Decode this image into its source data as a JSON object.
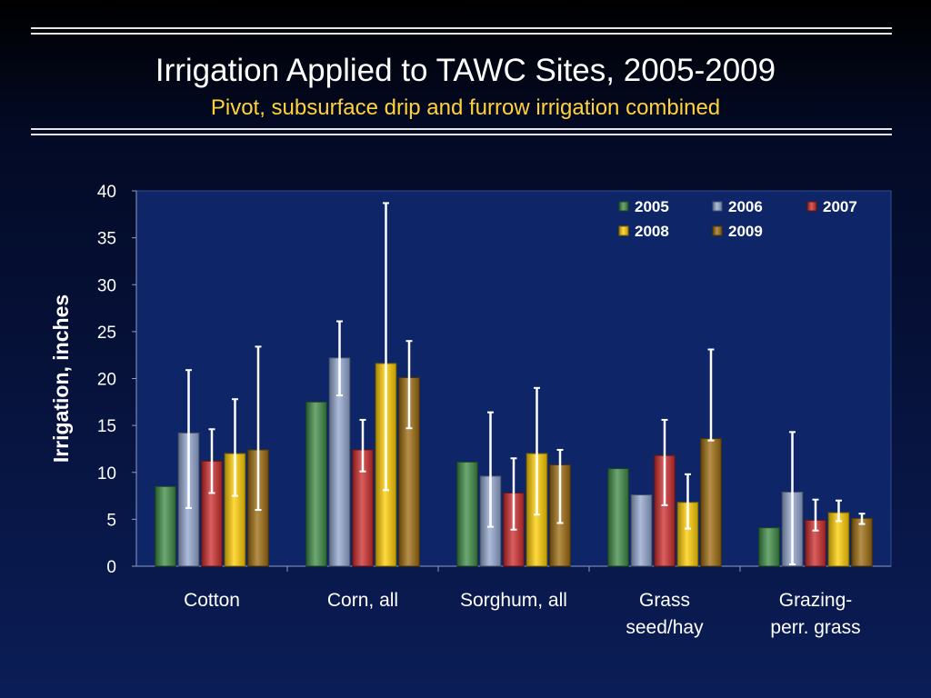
{
  "title": "Irrigation Applied to TAWC Sites, 2005-2009",
  "subtitle": "Pivot, subsurface drip and furrow irrigation combined",
  "colors": {
    "background": "#0b1d57",
    "title": "#ffffff",
    "subtitle": "#ffd23c",
    "error_bar": "#ffffff"
  },
  "chart_data": {
    "type": "bar",
    "ylabel": "Irrigation, inches",
    "xlabel": "",
    "ylim": [
      0,
      40
    ],
    "yticks": [
      0,
      5,
      10,
      15,
      20,
      25,
      30,
      35,
      40
    ],
    "grid": false,
    "legend_position": "top-right",
    "categories": [
      [
        "Cotton"
      ],
      [
        "Corn, all"
      ],
      [
        "Sorghum, all"
      ],
      [
        "Grass",
        "seed/hay"
      ],
      [
        "Grazing-",
        "perr. grass"
      ]
    ],
    "series": [
      {
        "name": "2005",
        "color": "#3c8a44",
        "values": [
          8.5,
          17.5,
          11.1,
          10.4,
          4.1
        ],
        "error_low": [
          null,
          null,
          null,
          null,
          null
        ],
        "error_high": [
          null,
          null,
          null,
          null,
          null
        ]
      },
      {
        "name": "2006",
        "color": "#92a6cf",
        "values": [
          14.2,
          22.2,
          9.6,
          7.6,
          7.9
        ],
        "error_low": [
          6.2,
          18.2,
          4.2,
          null,
          0.2
        ],
        "error_high": [
          20.9,
          26.1,
          16.4,
          null,
          14.3
        ]
      },
      {
        "name": "2007",
        "color": "#cc2a2a",
        "values": [
          11.2,
          12.4,
          7.8,
          11.8,
          4.9
        ],
        "error_low": [
          7.8,
          10.1,
          3.9,
          6.5,
          3.8
        ],
        "error_high": [
          14.6,
          15.6,
          11.5,
          15.6,
          7.1
        ]
      },
      {
        "name": "2008",
        "color": "#ffcc00",
        "values": [
          12.0,
          21.6,
          12.0,
          6.8,
          5.7
        ],
        "error_low": [
          7.5,
          8.1,
          5.5,
          4.0,
          4.8
        ],
        "error_high": [
          17.8,
          38.7,
          19.0,
          9.8,
          7.0
        ]
      },
      {
        "name": "2009",
        "color": "#9c6a0c",
        "values": [
          12.4,
          20.1,
          10.8,
          13.6,
          5.1
        ],
        "error_low": [
          6.0,
          14.7,
          4.6,
          13.4,
          4.5
        ],
        "error_high": [
          23.4,
          24.0,
          12.4,
          23.1,
          5.6
        ]
      }
    ]
  }
}
